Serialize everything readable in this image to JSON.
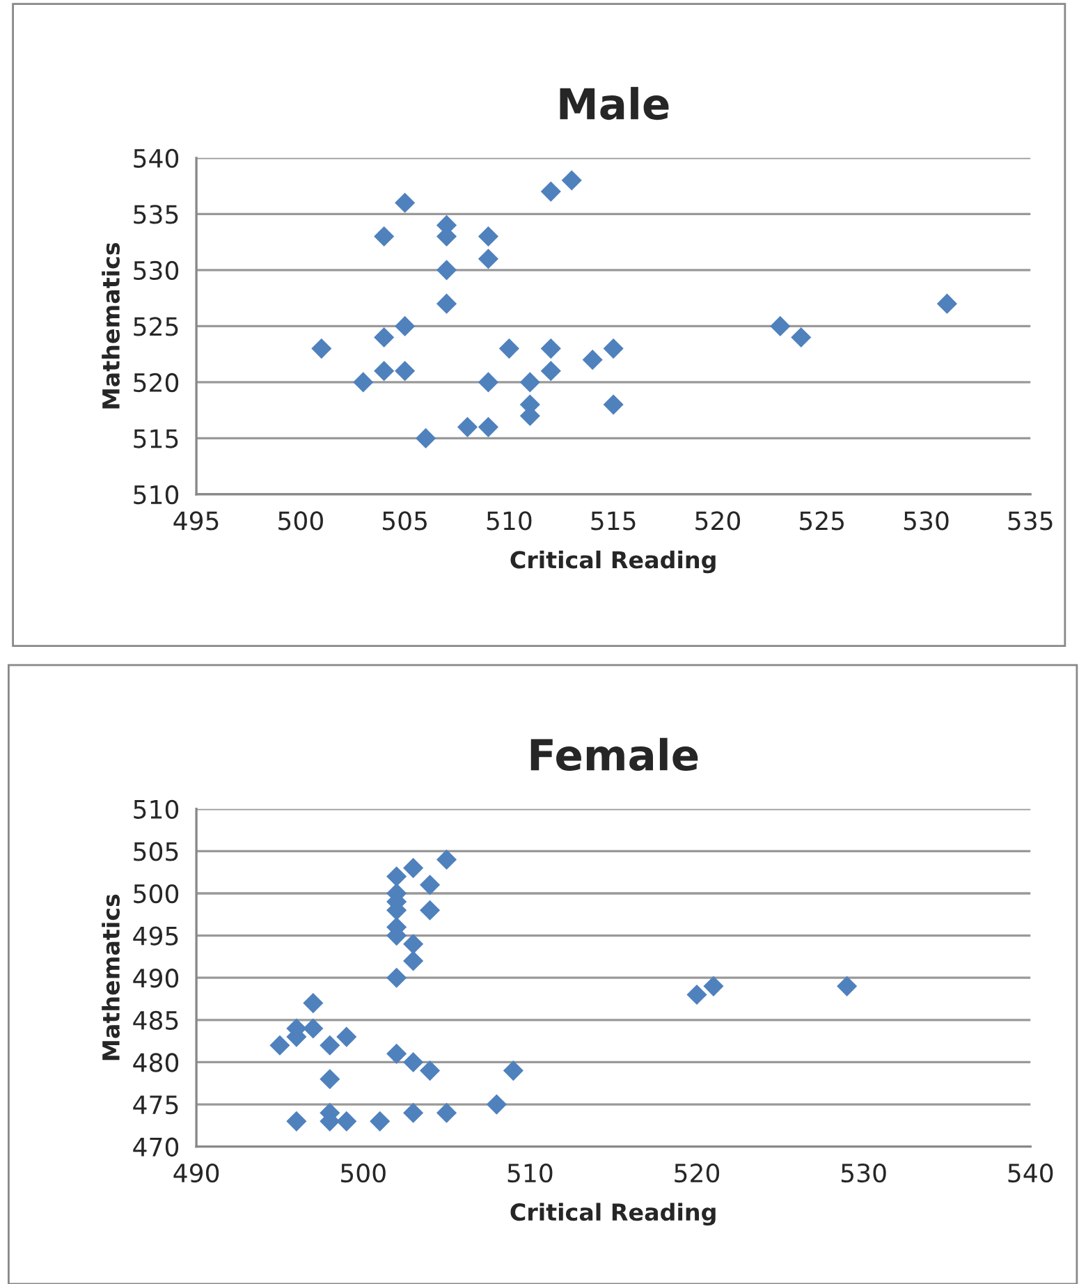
{
  "chart_data": [
    {
      "type": "scatter",
      "title": "Male",
      "xlabel": "Critical Reading",
      "ylabel": "Mathematics",
      "xlim": [
        495,
        535
      ],
      "xticks": [
        495,
        500,
        505,
        510,
        515,
        520,
        525,
        530,
        535
      ],
      "ylim": [
        510,
        540
      ],
      "yticks": [
        510,
        515,
        520,
        525,
        530,
        535,
        540
      ],
      "grid": "y",
      "marker": "diamond",
      "legend": false,
      "series": [
        {
          "color": "#4f81bd",
          "x": [
            501,
            503,
            504,
            504,
            504,
            505,
            505,
            505,
            506,
            507,
            507,
            507,
            507,
            508,
            509,
            509,
            509,
            509,
            510,
            511,
            511,
            511,
            512,
            512,
            512,
            513,
            514,
            515,
            515,
            523,
            524,
            531
          ],
          "values": [
            523,
            520,
            533,
            524,
            521,
            536,
            525,
            521,
            515,
            534,
            533,
            530,
            527,
            516,
            533,
            531,
            520,
            516,
            523,
            520,
            518,
            517,
            537,
            523,
            521,
            538,
            522,
            523,
            518,
            525,
            524,
            527
          ]
        }
      ]
    },
    {
      "type": "scatter",
      "title": "Female",
      "xlabel": "Critical Reading",
      "ylabel": "Mathematics",
      "xlim": [
        490,
        540
      ],
      "xticks": [
        490,
        500,
        510,
        520,
        530,
        540
      ],
      "ylim": [
        470,
        510
      ],
      "yticks": [
        470,
        475,
        480,
        485,
        490,
        495,
        500,
        505,
        510
      ],
      "grid": "y",
      "marker": "diamond",
      "legend": false,
      "series": [
        {
          "color": "#4f81bd",
          "x": [
            495,
            496,
            496,
            496,
            497,
            497,
            498,
            498,
            498,
            498,
            499,
            499,
            501,
            502,
            502,
            502,
            502,
            502,
            502,
            502,
            502,
            503,
            503,
            503,
            503,
            503,
            504,
            504,
            504,
            505,
            505,
            508,
            509,
            520,
            521,
            529
          ],
          "values": [
            482,
            484,
            483,
            473,
            487,
            484,
            482,
            478,
            474,
            473,
            483,
            473,
            473,
            502,
            500,
            499,
            498,
            496,
            495,
            490,
            481,
            503,
            494,
            492,
            480,
            474,
            501,
            498,
            479,
            504,
            474,
            475,
            479,
            488,
            489,
            489
          ]
        }
      ]
    }
  ]
}
